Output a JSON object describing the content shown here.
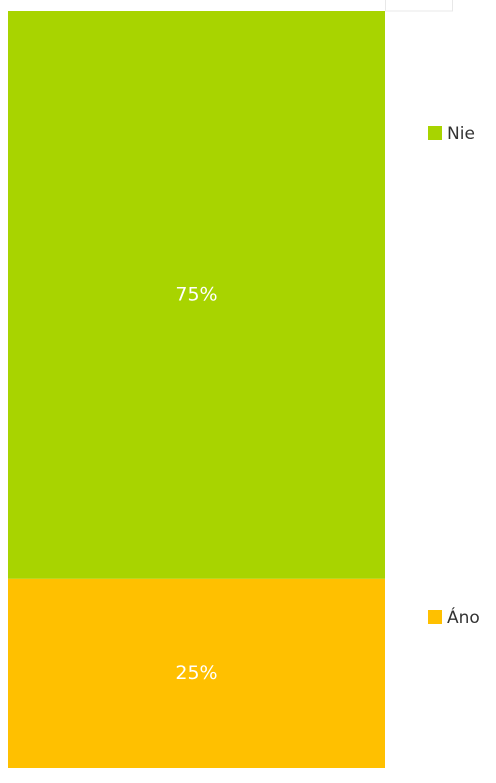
{
  "chart_data": {
    "type": "bar",
    "stacked": true,
    "categories": [
      null
    ],
    "series": [
      {
        "name": "Áno",
        "color": "#ffc000",
        "values": [
          25
        ],
        "value_labels": [
          "25%"
        ]
      },
      {
        "name": "Nie",
        "color": "#a8d400",
        "values": [
          75
        ],
        "value_labels": [
          "75%"
        ]
      }
    ],
    "ylim": [
      0,
      100
    ],
    "legend": "right"
  }
}
